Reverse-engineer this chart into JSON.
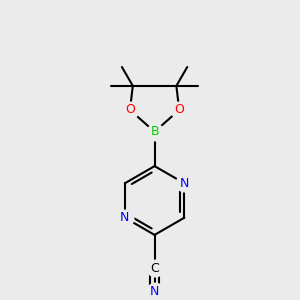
{
  "background_color": "#ebebeb",
  "bond_color": "#000000",
  "atom_colors": {
    "N": "#0000ff",
    "O": "#ff0000",
    "B": "#00cc00",
    "C": "#000000"
  },
  "bond_width": 1.5,
  "dbo": 0.055,
  "figsize": [
    3.0,
    3.0
  ],
  "dpi": 100
}
